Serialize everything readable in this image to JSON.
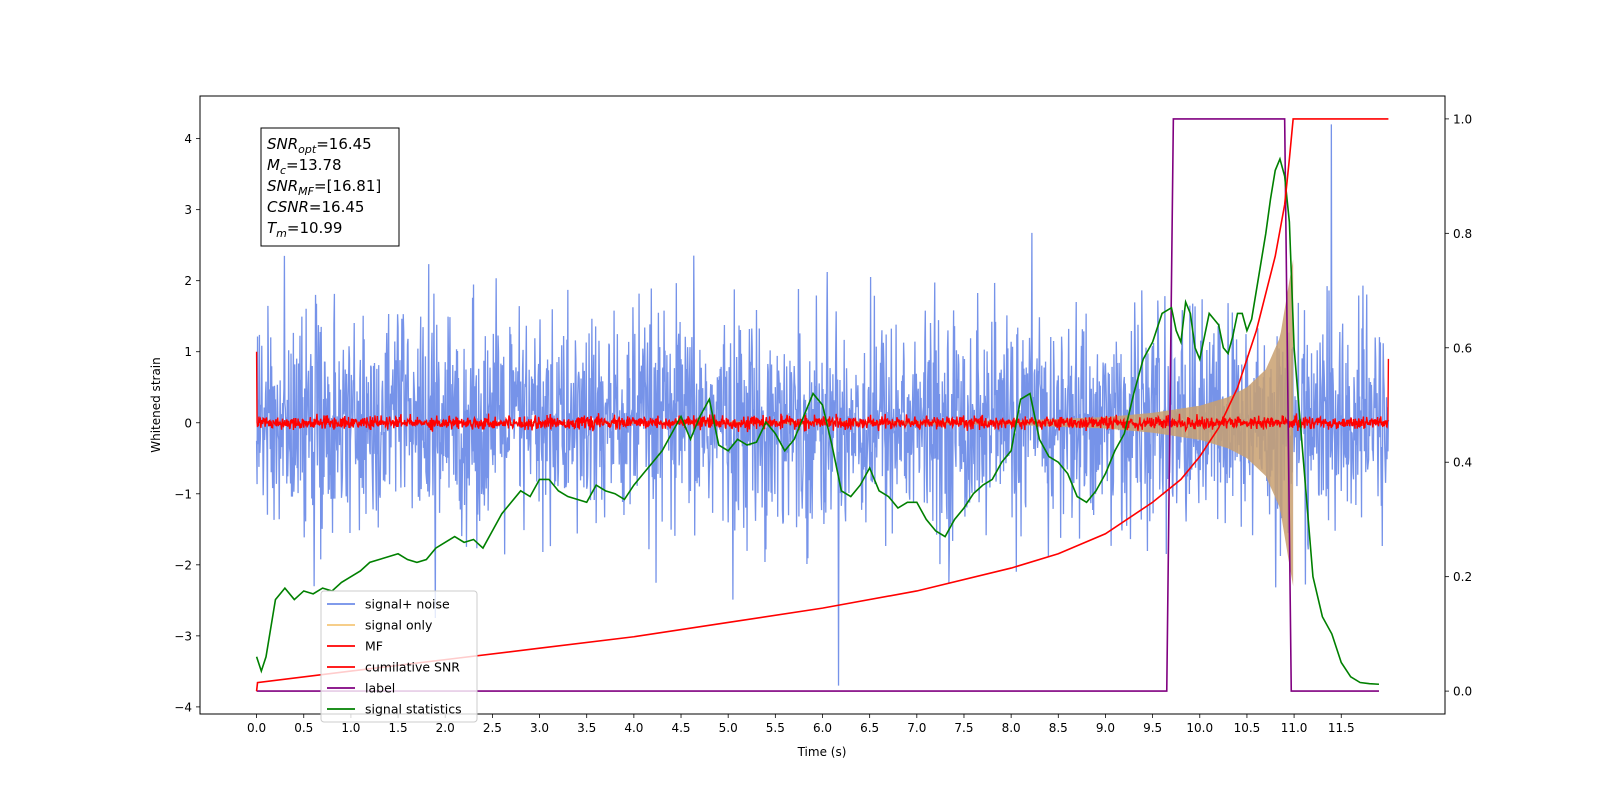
{
  "chart_data": {
    "type": "line",
    "xlabel": "Time (s)",
    "ylabel": "Whitened strain",
    "xlim": [
      -0.6,
      12.6
    ],
    "ylim": [
      -4.1,
      4.6
    ],
    "y2lim": [
      -0.04,
      1.04
    ],
    "xticks": [
      0.0,
      0.5,
      1.0,
      1.5,
      2.0,
      2.5,
      3.0,
      3.5,
      4.0,
      4.5,
      5.0,
      5.5,
      6.0,
      6.5,
      7.0,
      7.5,
      8.0,
      8.5,
      9.0,
      9.5,
      10.0,
      10.5,
      11.0,
      11.5
    ],
    "xtick_labels": [
      "0.0",
      "0.5",
      "1.0",
      "1.5",
      "2.0",
      "2.5",
      "3.0",
      "3.5",
      "4.0",
      "4.5",
      "5.0",
      "5.5",
      "6.0",
      "6.5",
      "7.0",
      "7.5",
      "8.0",
      "8.5",
      "9.0",
      "9.5",
      "10.0",
      "10.5",
      "11.0",
      "11.5"
    ],
    "yticks": [
      -4,
      -3,
      -2,
      -1,
      0,
      1,
      2,
      3,
      4
    ],
    "ytick_labels": [
      "−4",
      "−3",
      "−2",
      "−1",
      "0",
      "1",
      "2",
      "3",
      "4"
    ],
    "y2ticks": [
      0.0,
      0.2,
      0.4,
      0.6,
      0.8,
      1.0
    ],
    "y2tick_labels": [
      "0.0",
      "0.2",
      "0.4",
      "0.6",
      "0.8",
      "1.0"
    ],
    "grid": false,
    "legend_position": "lower-left",
    "annotation": {
      "lines": [
        {
          "main": "SNR",
          "sub": "opt",
          "rest": "=16.45"
        },
        {
          "main": "M",
          "sub": "c",
          "rest": "=13.78"
        },
        {
          "main": "SNR",
          "sub": "MF",
          "rest": "=[16.81]"
        },
        {
          "main": "CSNR",
          "sub": "",
          "rest": "=16.45"
        },
        {
          "main": "T",
          "sub": "m",
          "rest": "=10.99"
        }
      ]
    },
    "series": [
      {
        "name": "signal+ noise",
        "axis": "left",
        "color": "#6f8de8",
        "description": "whitened noisy strain, std ~0.75, range approx -3.7 to 4.2, spans 0 to 12 s"
      },
      {
        "name": "signal only",
        "axis": "left",
        "color": "#f5c77a",
        "envelope": {
          "x": [
            0,
            8.0,
            9.0,
            9.5,
            10.0,
            10.3,
            10.5,
            10.7,
            10.85,
            10.95,
            10.99
          ],
          "amp": [
            0.0,
            0.03,
            0.08,
            0.14,
            0.24,
            0.36,
            0.5,
            0.75,
            1.2,
            2.0,
            2.3
          ]
        }
      },
      {
        "name": "MF",
        "axis": "left",
        "color": "#ff0000",
        "description": "matched filter output around 0 with ±0.1 noise, spikes to ~1.0 at ends"
      },
      {
        "name": "cumilative SNR",
        "axis": "right",
        "color": "#ff0000",
        "x": [
          0,
          0.01,
          1,
          2,
          3,
          4,
          5,
          6,
          7,
          8,
          8.5,
          9.0,
          9.5,
          9.8,
          10.0,
          10.2,
          10.4,
          10.6,
          10.8,
          10.9,
          10.95,
          10.99,
          12.0
        ],
        "y": [
          0.0,
          0.015,
          0.035,
          0.055,
          0.075,
          0.095,
          0.12,
          0.145,
          0.175,
          0.215,
          0.24,
          0.275,
          0.33,
          0.37,
          0.41,
          0.46,
          0.53,
          0.63,
          0.76,
          0.85,
          0.93,
          1.0,
          1.0
        ]
      },
      {
        "name": "label",
        "axis": "right",
        "color": "#800080",
        "x": [
          0,
          9.65,
          9.72,
          10.9,
          10.97,
          11.9
        ],
        "y": [
          0,
          0,
          1,
          1,
          0,
          0
        ]
      },
      {
        "name": "signal statistics",
        "axis": "right",
        "color": "#008000",
        "x": [
          0.0,
          0.05,
          0.1,
          0.2,
          0.3,
          0.4,
          0.5,
          0.6,
          0.7,
          0.8,
          0.9,
          1.0,
          1.1,
          1.2,
          1.3,
          1.4,
          1.5,
          1.6,
          1.7,
          1.8,
          1.9,
          2.0,
          2.1,
          2.2,
          2.3,
          2.4,
          2.5,
          2.6,
          2.7,
          2.8,
          2.9,
          3.0,
          3.1,
          3.2,
          3.3,
          3.4,
          3.5,
          3.6,
          3.7,
          3.8,
          3.9,
          4.0,
          4.1,
          4.2,
          4.3,
          4.4,
          4.5,
          4.6,
          4.7,
          4.8,
          4.9,
          5.0,
          5.1,
          5.2,
          5.3,
          5.4,
          5.5,
          5.6,
          5.7,
          5.8,
          5.9,
          6.0,
          6.1,
          6.2,
          6.3,
          6.4,
          6.5,
          6.6,
          6.7,
          6.8,
          6.9,
          7.0,
          7.1,
          7.2,
          7.3,
          7.4,
          7.5,
          7.6,
          7.7,
          7.8,
          7.9,
          8.0,
          8.1,
          8.2,
          8.3,
          8.4,
          8.5,
          8.6,
          8.7,
          8.8,
          8.9,
          9.0,
          9.1,
          9.2,
          9.3,
          9.4,
          9.5,
          9.6,
          9.7,
          9.75,
          9.8,
          9.85,
          9.9,
          9.95,
          10.0,
          10.05,
          10.1,
          10.15,
          10.2,
          10.25,
          10.3,
          10.35,
          10.4,
          10.45,
          10.5,
          10.55,
          10.6,
          10.65,
          10.7,
          10.75,
          10.8,
          10.85,
          10.9,
          10.95,
          11.0,
          11.1,
          11.2,
          11.3,
          11.4,
          11.5,
          11.6,
          11.7,
          11.8,
          11.9
        ],
        "y": [
          0.06,
          0.035,
          0.06,
          0.16,
          0.18,
          0.16,
          0.175,
          0.17,
          0.18,
          0.175,
          0.19,
          0.2,
          0.21,
          0.225,
          0.23,
          0.235,
          0.24,
          0.23,
          0.225,
          0.23,
          0.25,
          0.26,
          0.27,
          0.26,
          0.265,
          0.25,
          0.28,
          0.31,
          0.33,
          0.35,
          0.34,
          0.37,
          0.37,
          0.35,
          0.34,
          0.335,
          0.33,
          0.36,
          0.35,
          0.345,
          0.335,
          0.36,
          0.38,
          0.4,
          0.42,
          0.45,
          0.48,
          0.44,
          0.48,
          0.51,
          0.43,
          0.42,
          0.44,
          0.43,
          0.435,
          0.47,
          0.45,
          0.42,
          0.44,
          0.48,
          0.52,
          0.5,
          0.43,
          0.35,
          0.34,
          0.36,
          0.39,
          0.35,
          0.34,
          0.32,
          0.33,
          0.33,
          0.3,
          0.28,
          0.27,
          0.3,
          0.32,
          0.345,
          0.36,
          0.37,
          0.4,
          0.42,
          0.51,
          0.52,
          0.44,
          0.41,
          0.4,
          0.38,
          0.34,
          0.33,
          0.35,
          0.38,
          0.42,
          0.45,
          0.52,
          0.58,
          0.61,
          0.66,
          0.67,
          0.63,
          0.61,
          0.68,
          0.66,
          0.6,
          0.58,
          0.62,
          0.66,
          0.65,
          0.64,
          0.6,
          0.59,
          0.62,
          0.66,
          0.66,
          0.63,
          0.65,
          0.7,
          0.75,
          0.8,
          0.86,
          0.91,
          0.93,
          0.9,
          0.82,
          0.6,
          0.4,
          0.2,
          0.13,
          0.1,
          0.05,
          0.025,
          0.015,
          0.013,
          0.012
        ]
      }
    ]
  }
}
